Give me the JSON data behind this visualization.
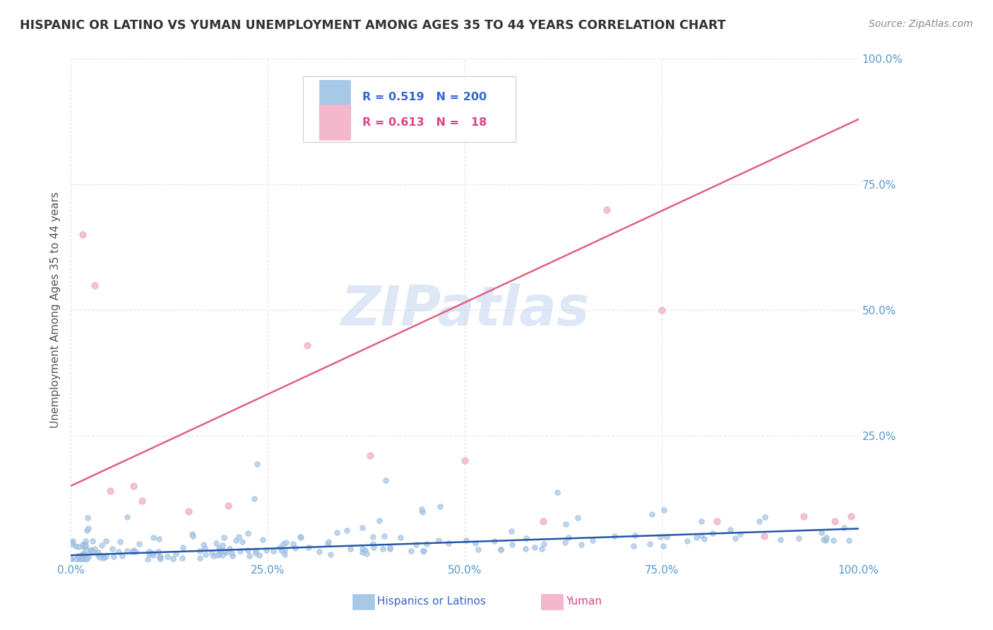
{
  "title": "HISPANIC OR LATINO VS YUMAN UNEMPLOYMENT AMONG AGES 35 TO 44 YEARS CORRELATION CHART",
  "source": "Source: ZipAtlas.com",
  "ylabel": "Unemployment Among Ages 35 to 44 years",
  "legend_entries": [
    {
      "label": "Hispanics or Latinos",
      "R": 0.519,
      "N": 200
    },
    {
      "label": "Yuman",
      "R": 0.613,
      "N": 18
    }
  ],
  "blue_scatter_color": "#a8c8e8",
  "pink_scatter_color": "#f4b8cc",
  "blue_line_color": "#2255aa",
  "pink_line_color": "#e06080",
  "legend_blue_color": "#a8c8e8",
  "legend_pink_color": "#f4b8cc",
  "text_blue_color": "#3366cc",
  "text_pink_color": "#dd4488",
  "watermark_color": "#c8d8f0",
  "bg_color": "#ffffff",
  "grid_color": "#e8e8e8",
  "tick_color": "#5599cc",
  "ylabel_color": "#555555",
  "title_color": "#333333",
  "source_color": "#888888",
  "pink_scatter_x": [
    1.5,
    5.0,
    9.0,
    15.0,
    20.0,
    30.0,
    38.0,
    50.0,
    60.0,
    68.0,
    75.0,
    82.0,
    88.0,
    93.0,
    97.0,
    99.0,
    3.0,
    8.0
  ],
  "pink_scatter_y": [
    65.0,
    14.0,
    12.0,
    10.0,
    11.0,
    43.0,
    21.0,
    20.0,
    8.0,
    70.0,
    50.0,
    8.0,
    5.0,
    9.0,
    8.0,
    9.0,
    55.0,
    15.0
  ],
  "blue_line_y0": 1.2,
  "blue_line_y1": 6.5,
  "pink_line_y0": 15.0,
  "pink_line_y1": 88.0,
  "xlim": [
    0,
    100
  ],
  "ylim": [
    0,
    100
  ]
}
